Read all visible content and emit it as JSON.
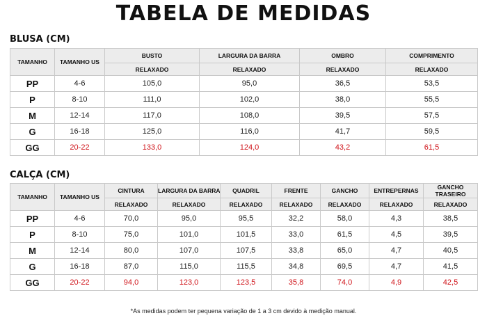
{
  "title": "TABELA DE MEDIDAS",
  "blusa": {
    "section_title": "BLUSA (CM)",
    "headers": {
      "tamanho": "TAMANHO",
      "tamanho_us": "TAMANHO US",
      "busto": "BUSTO",
      "largura_barra": "LARGURA DA BARRA",
      "ombro": "OMBRO",
      "comprimento": "COMPRIMENTO",
      "relaxado": "RELAXADO"
    },
    "rows": [
      [
        "PP",
        "4-6",
        "105,0",
        "95,0",
        "36,5",
        "53,5"
      ],
      [
        "P",
        "8-10",
        "111,0",
        "102,0",
        "38,0",
        "55,5"
      ],
      [
        "M",
        "12-14",
        "117,0",
        "108,0",
        "39,5",
        "57,5"
      ],
      [
        "G",
        "16-18",
        "125,0",
        "116,0",
        "41,7",
        "59,5"
      ],
      [
        "GG",
        "20-22",
        "133,0",
        "124,0",
        "43,2",
        "61,5"
      ]
    ]
  },
  "calca": {
    "section_title": "CALÇA (CM)",
    "headers": {
      "tamanho": "TAMANHO",
      "tamanho_us": "TAMANHO US",
      "cintura": "CINTURA",
      "largura_barra": "LARGURA DA BARRA",
      "quadril": "QUADRIL",
      "frente": "FRENTE",
      "gancho": "GANCHO",
      "entrepernas": "ENTREPERNAS",
      "gancho_traseiro": "GANCHO TRASEIRO",
      "relaxado": "RELAXADO"
    },
    "rows": [
      [
        "PP",
        "4-6",
        "70,0",
        "95,0",
        "95,5",
        "32,2",
        "58,0",
        "4,3",
        "38,5"
      ],
      [
        "P",
        "8-10",
        "75,0",
        "101,0",
        "101,5",
        "33,0",
        "61,5",
        "4,5",
        "39,5"
      ],
      [
        "M",
        "12-14",
        "80,0",
        "107,0",
        "107,5",
        "33,8",
        "65,0",
        "4,7",
        "40,5"
      ],
      [
        "G",
        "16-18",
        "87,0",
        "115,0",
        "115,5",
        "34,8",
        "69,5",
        "4,7",
        "41,5"
      ],
      [
        "GG",
        "20-22",
        "94,0",
        "123,0",
        "123,5",
        "35,8",
        "74,0",
        "4,9",
        "42,5"
      ]
    ]
  },
  "note": "*As medidas podem ter pequena variação de 1 a 3 cm devido à medição manual.",
  "colors": {
    "highlight": "#d0151b",
    "header_bg": "#ececec",
    "border": "#c9c9c9"
  }
}
